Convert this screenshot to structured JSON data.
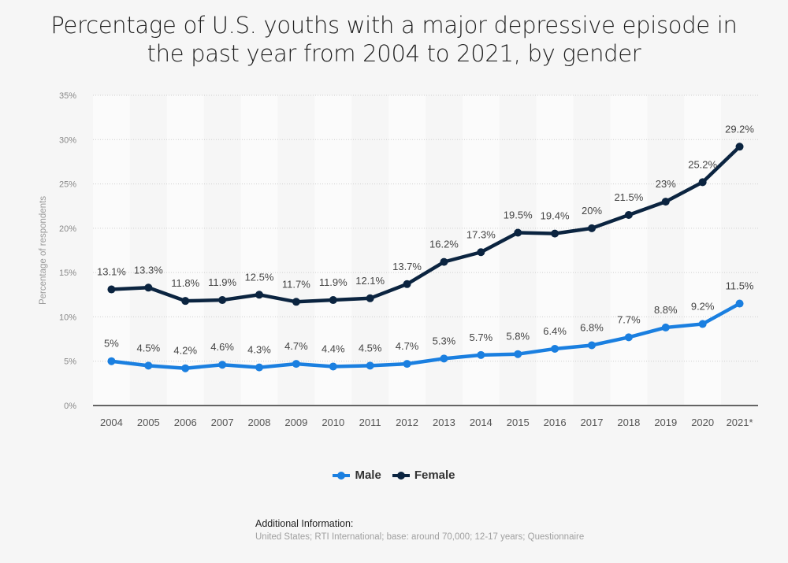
{
  "chart_data": {
    "type": "line",
    "title": "Percentage of U.S. youths with a major depressive episode in the past year from 2004 to 2021, by gender",
    "title_lines": [
      "Percentage of U.S. youths with a major depressive episode in",
      "the past year from 2004 to 2021, by gender"
    ],
    "xlabel": "",
    "ylabel": "Percentage of respondents",
    "categories": [
      "2004",
      "2005",
      "2006",
      "2007",
      "2008",
      "2009",
      "2010",
      "2011",
      "2012",
      "2013",
      "2014",
      "2015",
      "2016",
      "2017",
      "2018",
      "2019",
      "2020",
      "2021*"
    ],
    "ylim": [
      0,
      35
    ],
    "yticks": [
      0,
      5,
      10,
      15,
      20,
      25,
      30,
      35
    ],
    "ytick_labels": [
      "0%",
      "5%",
      "10%",
      "15%",
      "20%",
      "25%",
      "30%",
      "35%"
    ],
    "grid": true,
    "legend_position": "bottom-center",
    "series": [
      {
        "name": "Male",
        "color": "#1a7fe0",
        "values": [
          5,
          4.5,
          4.2,
          4.6,
          4.3,
          4.7,
          4.4,
          4.5,
          4.7,
          5.3,
          5.7,
          5.8,
          6.4,
          6.8,
          7.7,
          8.8,
          9.2,
          11.5
        ],
        "labels": [
          "5%",
          "4.5%",
          "4.2%",
          "4.6%",
          "4.3%",
          "4.7%",
          "4.4%",
          "4.5%",
          "4.7%",
          "5.3%",
          "5.7%",
          "5.8%",
          "6.4%",
          "6.8%",
          "7.7%",
          "8.8%",
          "9.2%",
          "11.5%"
        ]
      },
      {
        "name": "Female",
        "color": "#0b2440",
        "values": [
          13.1,
          13.3,
          11.8,
          11.9,
          12.5,
          11.7,
          11.9,
          12.1,
          13.7,
          16.2,
          17.3,
          19.5,
          19.4,
          20,
          21.5,
          23,
          25.2,
          29.2
        ],
        "labels": [
          "13.1%",
          "13.3%",
          "11.8%",
          "11.9%",
          "12.5%",
          "11.7%",
          "11.9%",
          "12.1%",
          "13.7%",
          "16.2%",
          "17.3%",
          "19.5%",
          "19.4%",
          "20%",
          "21.5%",
          "23%",
          "25.2%",
          "29.2%"
        ]
      }
    ]
  },
  "legend": {
    "items": [
      {
        "label": "Male",
        "color": "#1a7fe0"
      },
      {
        "label": "Female",
        "color": "#0b2440"
      }
    ]
  },
  "footer": {
    "heading": "Additional Information:",
    "text": "United States; RTI International; base: around 70,000; 12-17 years; Questionnaire"
  }
}
